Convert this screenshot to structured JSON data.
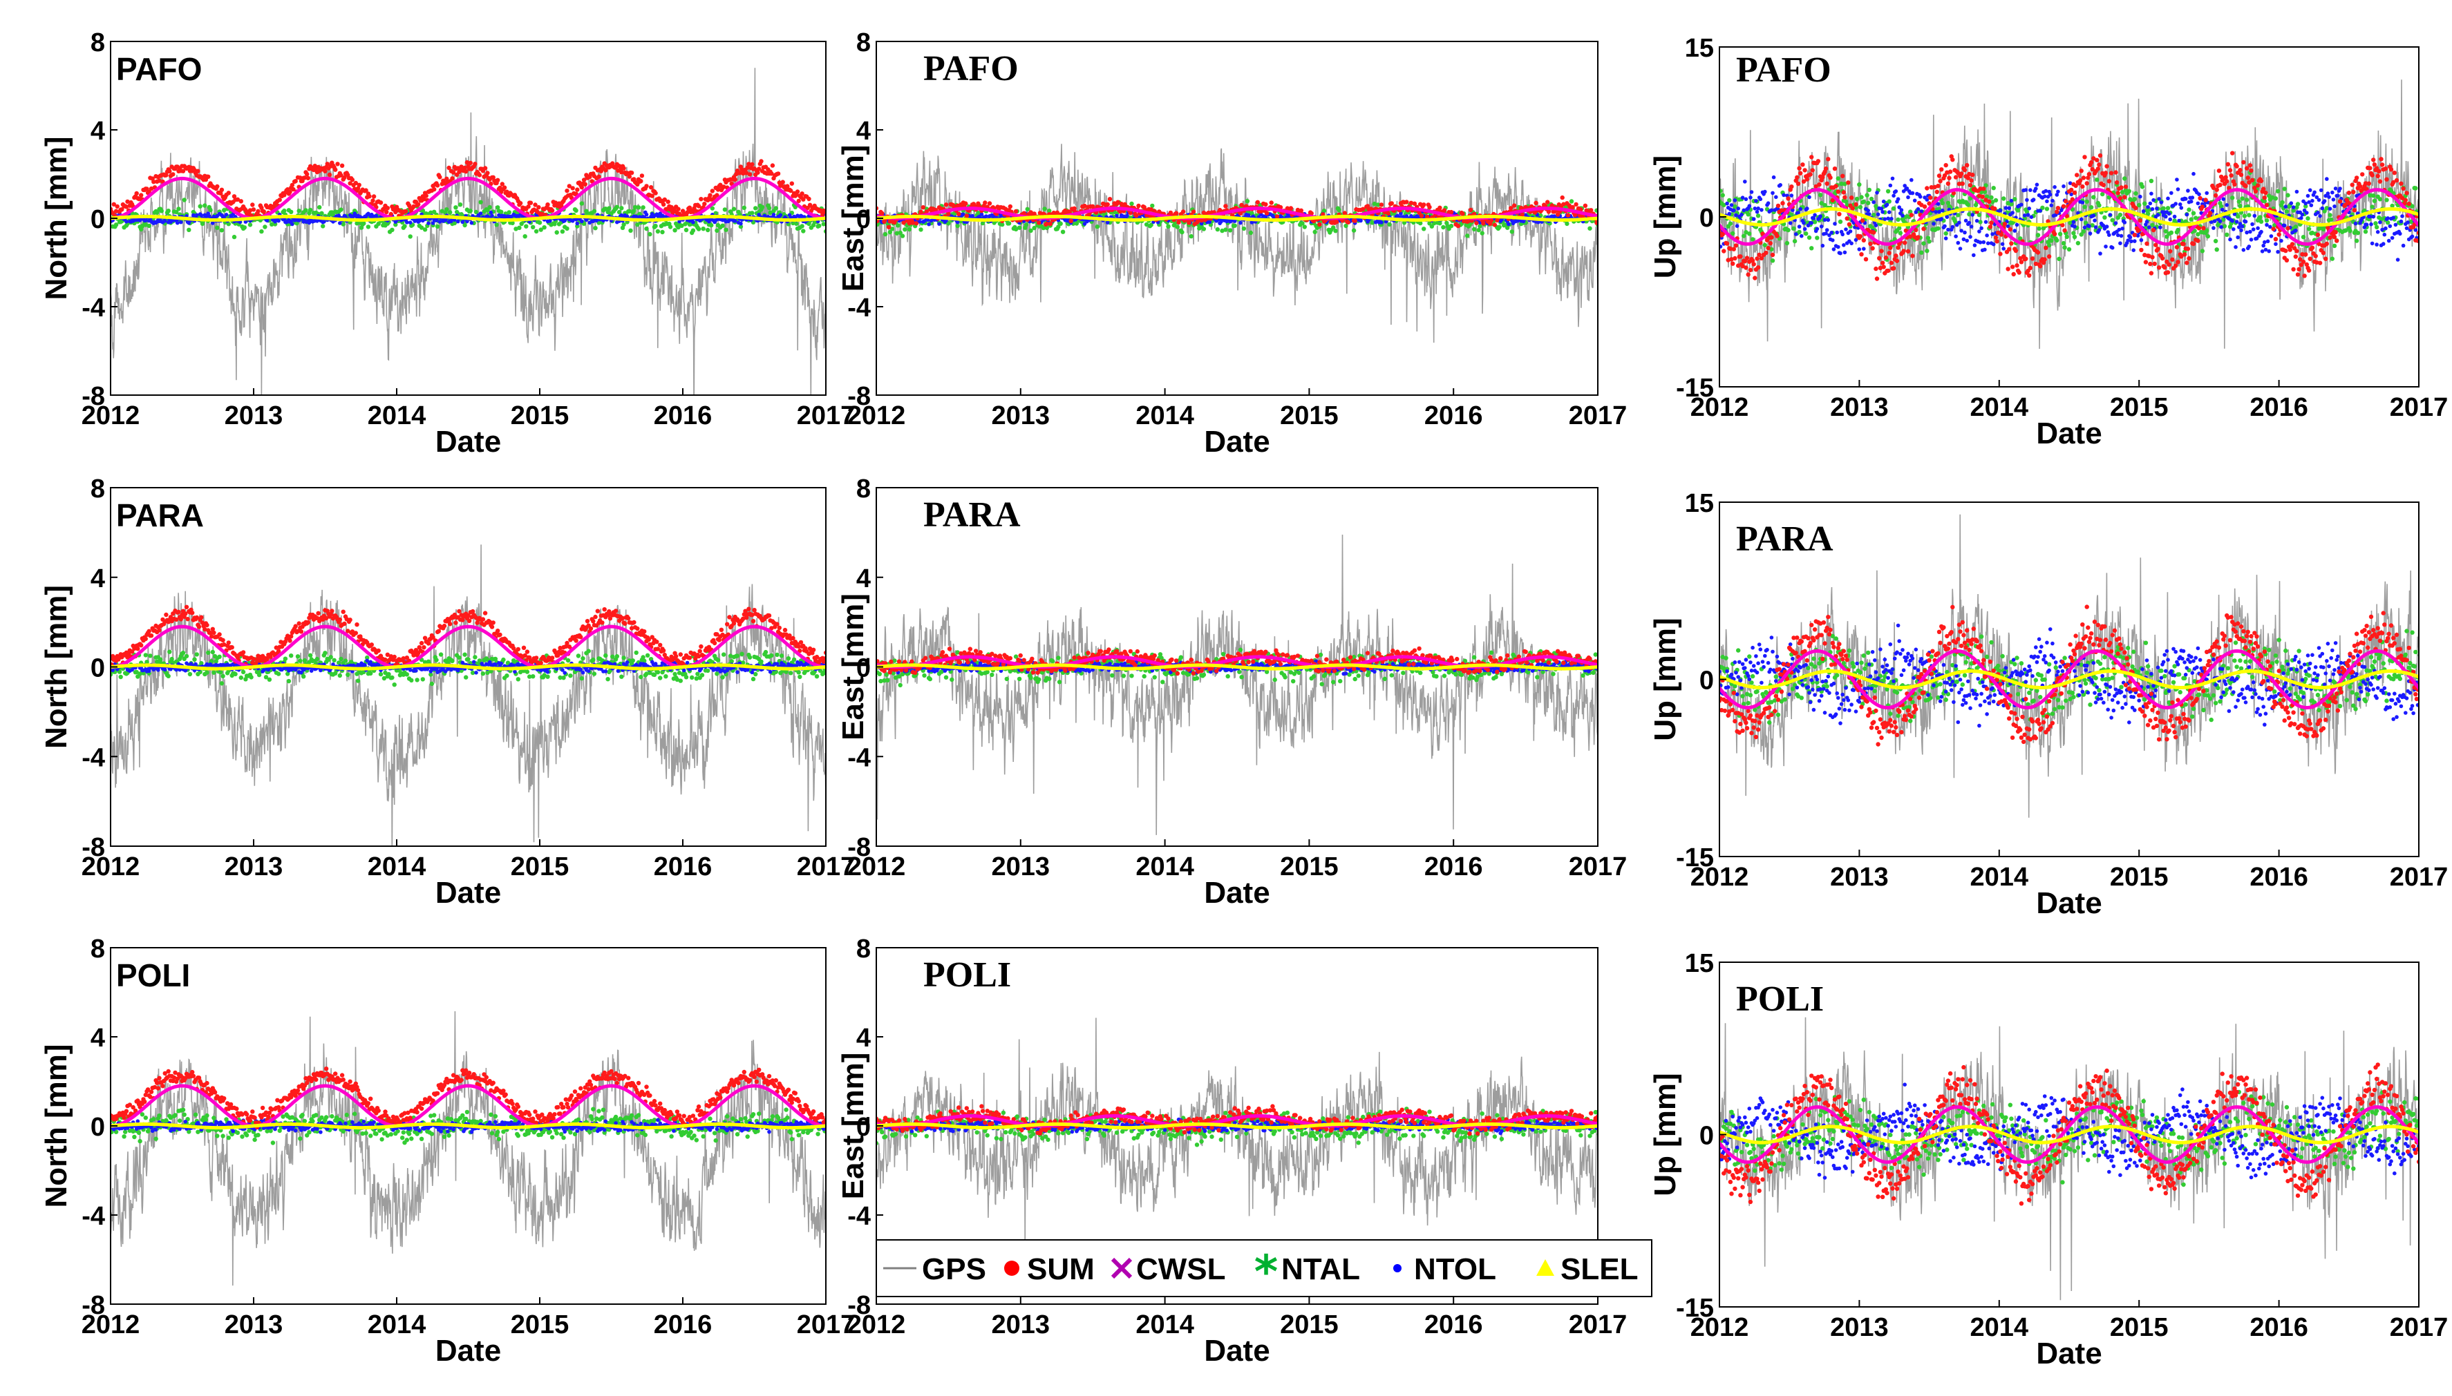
{
  "figure": {
    "x_axis_label": "Date",
    "x_tick_labels": [
      "2012",
      "2013",
      "2014",
      "2015",
      "2016",
      "2017"
    ]
  },
  "legend": {
    "items": [
      {
        "label": "GPS",
        "color": "#808080",
        "marker": "line"
      },
      {
        "label": "SUM",
        "color": "#ff0000",
        "marker": "dot"
      },
      {
        "label": "CWSL",
        "color": "#b000b0",
        "marker": "cross"
      },
      {
        "label": "NTAL",
        "color": "#00b030",
        "marker": "star"
      },
      {
        "label": "NTOL",
        "color": "#0000ff",
        "marker": "smalldot"
      },
      {
        "label": "SLEL",
        "color": "#ffff00",
        "marker": "triangle"
      }
    ]
  },
  "colors": {
    "gps": "#8c8c8c",
    "sum": "#ff1a1a",
    "cwsl": "#ff00cc",
    "ntal": "#33cc33",
    "ntol": "#1a1aff",
    "slel": "#ffff00"
  },
  "chart_data": [
    {
      "type": "scatter",
      "station": "PAFO",
      "component": "North",
      "ylabel": "North [mm]",
      "ylim": [
        -8,
        8
      ],
      "yticks": [
        "8",
        "4",
        "0",
        "-4",
        "-8"
      ],
      "xlim": [
        2012,
        2017
      ],
      "xlabel": "Date",
      "station_font": "sans",
      "seasonal_sum_amplitude_mm": 2.0
    },
    {
      "type": "scatter",
      "station": "PAFO",
      "component": "East",
      "ylabel": "East [mm]",
      "ylim": [
        -8,
        8
      ],
      "yticks": [
        "8",
        "4",
        "0",
        "-4",
        "-8"
      ],
      "xlim": [
        2012,
        2017
      ],
      "xlabel": "Date",
      "station_font": "serif",
      "seasonal_sum_amplitude_mm": 0.5
    },
    {
      "type": "scatter",
      "station": "PAFO",
      "component": "Up",
      "ylabel": "Up [mm]",
      "ylim": [
        -15,
        15
      ],
      "yticks": [
        "15",
        "0",
        "-15"
      ],
      "xlim": [
        2012,
        2017
      ],
      "xlabel": "Date",
      "station_font": "serif",
      "seasonal_sum_amplitude_mm": 4.0
    },
    {
      "type": "scatter",
      "station": "PARA",
      "component": "North",
      "ylabel": "North [mm]",
      "ylim": [
        -8,
        8
      ],
      "yticks": [
        "8",
        "4",
        "0",
        "-4",
        "-8"
      ],
      "xlim": [
        2012,
        2017
      ],
      "xlabel": "Date",
      "station_font": "sans",
      "seasonal_sum_amplitude_mm": 2.0
    },
    {
      "type": "scatter",
      "station": "PARA",
      "component": "East",
      "ylabel": "East [mm]",
      "ylim": [
        -8,
        8
      ],
      "yticks": [
        "8",
        "4",
        "0",
        "-4",
        "-8"
      ],
      "xlim": [
        2012,
        2017
      ],
      "xlabel": "Date",
      "station_font": "serif",
      "seasonal_sum_amplitude_mm": 0.5
    },
    {
      "type": "scatter",
      "station": "PARA",
      "component": "Up",
      "ylabel": "Up [mm]",
      "ylim": [
        -15,
        15
      ],
      "yticks": [
        "15",
        "0",
        "-15"
      ],
      "xlim": [
        2012,
        2017
      ],
      "xlabel": "Date",
      "station_font": "serif",
      "seasonal_sum_amplitude_mm": 4.0
    },
    {
      "type": "scatter",
      "station": "POLI",
      "component": "North",
      "ylabel": "North [mm]",
      "ylim": [
        -8,
        8
      ],
      "yticks": [
        "8",
        "4",
        "0",
        "-4",
        "-8"
      ],
      "xlim": [
        2012,
        2017
      ],
      "xlabel": "Date",
      "station_font": "sans",
      "seasonal_sum_amplitude_mm": 2.0
    },
    {
      "type": "scatter",
      "station": "POLI",
      "component": "East",
      "ylabel": "East [mm]",
      "ylim": [
        -8,
        8
      ],
      "yticks": [
        "8",
        "4",
        "0",
        "-4",
        "-8"
      ],
      "xlim": [
        2012,
        2017
      ],
      "xlabel": "Date",
      "station_font": "serif",
      "seasonal_sum_amplitude_mm": 0.5
    },
    {
      "type": "scatter",
      "station": "POLI",
      "component": "Up",
      "ylabel": "Up [mm]",
      "ylim": [
        -15,
        15
      ],
      "yticks": [
        "15",
        "0",
        "-15"
      ],
      "xlim": [
        2012,
        2017
      ],
      "xlabel": "Date",
      "station_font": "serif",
      "seasonal_sum_amplitude_mm": 4.0
    }
  ]
}
